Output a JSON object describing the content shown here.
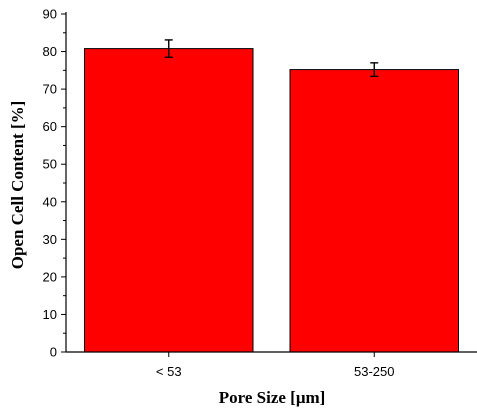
{
  "chart_data": {
    "type": "bar",
    "title": "",
    "xlabel": "Pore Size [μm]",
    "ylabel": "Open Cell Content [%]",
    "categories": [
      "< 53",
      "53-250"
    ],
    "values": [
      80.8,
      75.2
    ],
    "errors": [
      2.3,
      1.8
    ],
    "ylim": [
      0,
      90
    ],
    "yticks": [
      0,
      10,
      20,
      30,
      40,
      50,
      60,
      70,
      80,
      90
    ],
    "ytick_labels": [
      "0",
      "10",
      "20",
      "30",
      "40",
      "50",
      "60",
      "70",
      "80",
      "90"
    ],
    "bar_color": "#ff0000",
    "grid": false,
    "legend": "none"
  }
}
